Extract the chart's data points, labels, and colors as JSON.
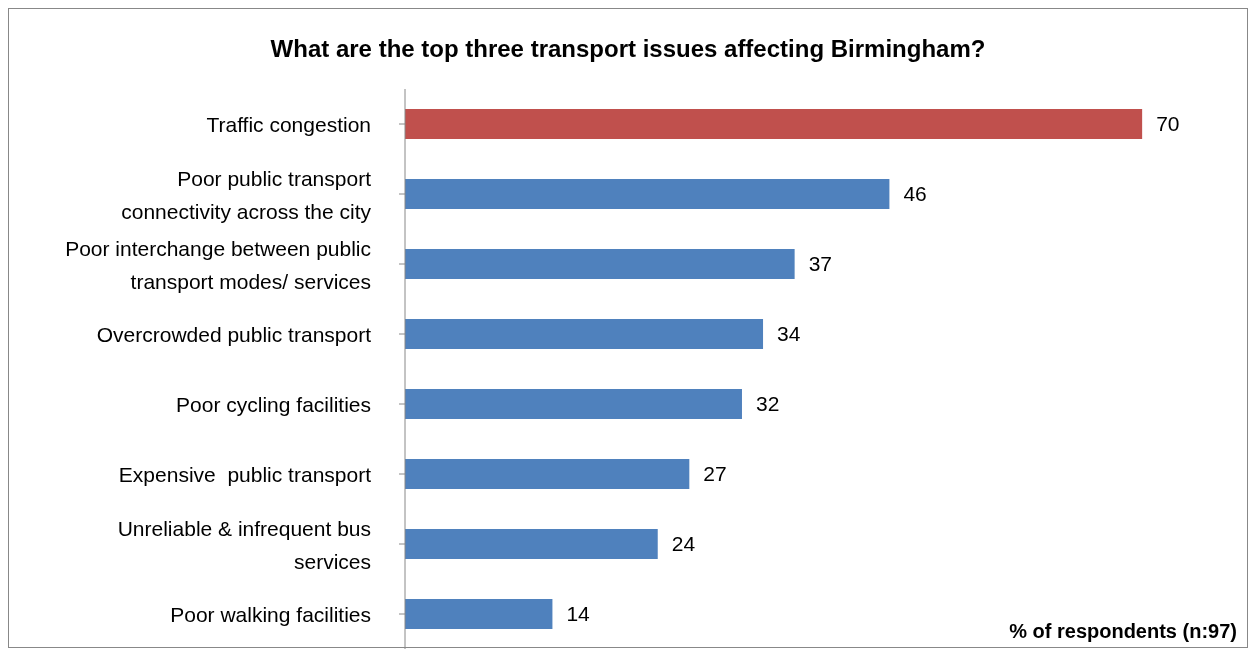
{
  "chart_data": {
    "type": "bar",
    "orientation": "horizontal",
    "title": "What are the top three transport issues affecting Birmingham?",
    "xlabel": "% of respondents (n:97)",
    "categories": [
      "Traffic congestion",
      "Poor public transport connectivity across the city",
      "Poor interchange between public transport modes/ services",
      "Overcrowded public transport",
      "Poor cycling facilities",
      "Expensive  public transport",
      "Unreliable & infrequent bus services",
      "Poor walking facilities"
    ],
    "values": [
      70,
      46,
      37,
      34,
      32,
      27,
      24,
      14
    ],
    "colors": [
      "#c0504d",
      "#4f81bd",
      "#4f81bd",
      "#4f81bd",
      "#4f81bd",
      "#4f81bd",
      "#4f81bd",
      "#4f81bd"
    ],
    "data_labels": true,
    "grid": false,
    "legend": false
  }
}
